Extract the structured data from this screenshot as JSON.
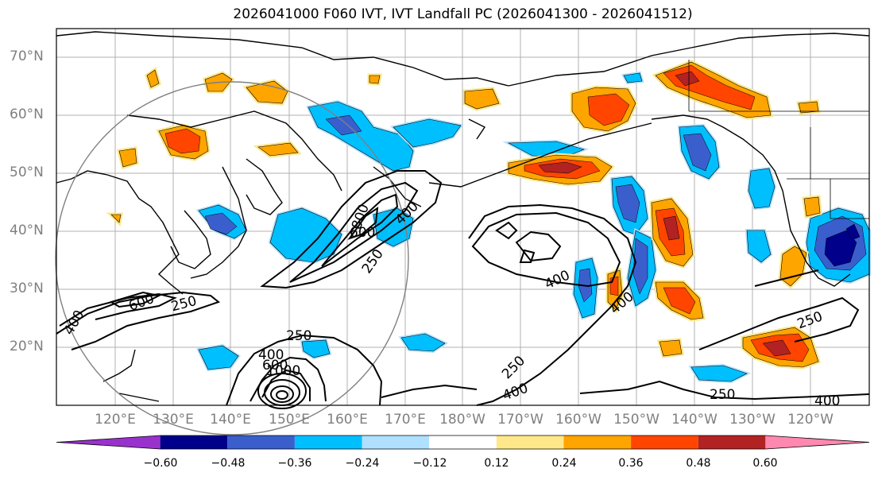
{
  "title": "2026041000 F060 IVT, IVT Landfall PC (2026041300 - 2026041512)",
  "lat_labels": [
    "70°N",
    "60°N",
    "50°N",
    "40°N",
    "30°N",
    "20°N"
  ],
  "lon_labels": [
    "120°E",
    "130°E",
    "140°E",
    "150°E",
    "160°E",
    "170°E",
    "180°W",
    "170°W",
    "160°W",
    "150°W",
    "140°W",
    "130°W",
    "120°W"
  ],
  "contour_labels": [
    "250",
    "400",
    "600",
    "800",
    "1000"
  ],
  "colorbar": {
    "ticks": [
      "−0.60",
      "−0.48",
      "−0.36",
      "−0.24",
      "−0.12",
      "0.12",
      "0.24",
      "0.36",
      "0.48",
      "0.60"
    ],
    "colors": [
      "#9932cc",
      "#00008b",
      "#3a5fcd",
      "#00bfff",
      "#b0e0ff",
      "#ffffff",
      "#ffe88a",
      "#ffa500",
      "#ff4500",
      "#b22222",
      "#ff88b0"
    ]
  },
  "colors": {
    "blue_light": "#00bfff",
    "blue_mid": "#3a5fcd",
    "blue_dark": "#00008b",
    "orange": "#ffa500",
    "red_orange": "#ff4500",
    "dark_red": "#b22222",
    "pale_yellow": "#ffe88a",
    "grid": "#b0b0b0",
    "range_circle": "#808080"
  }
}
